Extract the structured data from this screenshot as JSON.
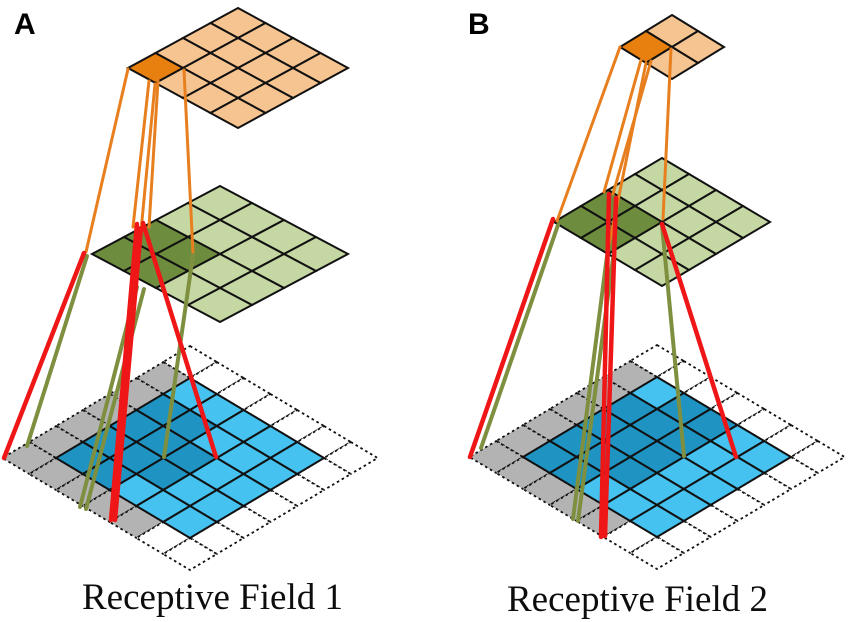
{
  "figure": {
    "background": "#ffffff",
    "colors": {
      "white": "#ffffff",
      "stroke": "#111111",
      "orange_light": "#f6c490",
      "orange_dark": "#e8800f",
      "orange_line": "#e87f1f",
      "green_light": "#c5d8a4",
      "green_dark": "#6e8c3d",
      "olive_line": "#7e9040",
      "blue_light": "#45c2f0",
      "blue_dark": "#1f93c2",
      "gray": "#b3b3b3",
      "red_line": "#ee1616"
    },
    "panels": [
      {
        "id": "A",
        "label": "A",
        "caption": "Receptive Field 1",
        "layers": [
          {
            "name": "output-layer-a",
            "rows": 4,
            "cols": 4,
            "top_vertex": [
              238,
              8
            ],
            "half_w": 27.5,
            "half_h": 15,
            "border": "solid",
            "base_fill": "orange_light",
            "highlight_fill": "orange_dark",
            "highlight_cells": [
              [
                3,
                0
              ]
            ]
          },
          {
            "name": "middle-layer-a",
            "rows": 4,
            "cols": 4,
            "top_vertex": [
              220,
              186
            ],
            "half_w": 32,
            "half_h": 17,
            "border": "solid",
            "base_fill": "green_light",
            "highlight_fill": "green_dark",
            "highlight_cells": [
              [
                2,
                0
              ],
              [
                2,
                1
              ],
              [
                3,
                0
              ],
              [
                3,
                1
              ]
            ]
          },
          {
            "name": "input-layer-a",
            "rows": 7,
            "cols": 7,
            "top_vertex": [
              190,
              346
            ],
            "half_w": 26.8,
            "half_h": 16,
            "border": "dotted",
            "base_fill": "white",
            "cell_fills": {
              "gray": [
                [
                  1,
                  0
                ],
                [
                  2,
                  0
                ],
                [
                  3,
                  0
                ],
                [
                  4,
                  0
                ],
                [
                  5,
                  0
                ],
                [
                  6,
                  0
                ],
                [
                  6,
                  1
                ],
                [
                  6,
                  2
                ],
                [
                  6,
                  3
                ],
                [
                  6,
                  4
                ]
              ],
              "blue_light": [
                [
                  1,
                  1
                ],
                [
                  1,
                  2
                ],
                [
                  1,
                  3
                ],
                [
                  1,
                  4
                ],
                [
                  1,
                  5
                ],
                [
                  2,
                  3
                ],
                [
                  2,
                  4
                ],
                [
                  2,
                  5
                ],
                [
                  3,
                  4
                ],
                [
                  3,
                  5
                ],
                [
                  4,
                  4
                ],
                [
                  4,
                  5
                ],
                [
                  5,
                  3
                ],
                [
                  5,
                  4
                ],
                [
                  5,
                  5
                ]
              ],
              "blue_dark": [
                [
                  2,
                  1
                ],
                [
                  2,
                  2
                ],
                [
                  3,
                  1
                ],
                [
                  3,
                  2
                ],
                [
                  3,
                  3
                ],
                [
                  4,
                  1
                ],
                [
                  4,
                  2
                ],
                [
                  4,
                  3
                ],
                [
                  5,
                  1
                ],
                [
                  5,
                  2
                ]
              ]
            }
          }
        ],
        "connections": [
          {
            "color": "orange_line",
            "width": 3,
            "from": [
              128,
              69
            ],
            "to": [
              86,
              252
            ]
          },
          {
            "color": "orange_line",
            "width": 3,
            "from": [
              149,
              81
            ],
            "to": [
              133,
              227
            ]
          },
          {
            "color": "orange_line",
            "width": 3,
            "from": [
              155,
              84
            ],
            "to": [
              141,
              231
            ]
          },
          {
            "color": "orange_line",
            "width": 3,
            "from": [
              158,
              81
            ],
            "to": [
              149,
              227
            ]
          },
          {
            "color": "orange_line",
            "width": 3,
            "from": [
              184,
              70
            ],
            "to": [
              193,
              253
            ]
          },
          {
            "color": "olive_line",
            "width": 4,
            "from": [
              87,
              256
            ],
            "to": [
              27,
              446
            ]
          },
          {
            "color": "olive_line",
            "width": 4,
            "from": [
              137,
              287
            ],
            "to": [
              80,
              507
            ]
          },
          {
            "color": "olive_line",
            "width": 4,
            "from": [
              144,
              289
            ],
            "to": [
              86,
              509
            ]
          },
          {
            "color": "olive_line",
            "width": 4,
            "from": [
              193,
              255
            ],
            "to": [
              164,
              457
            ]
          },
          {
            "color": "red_line",
            "width": 4.5,
            "from": [
              84,
              253
            ],
            "to": [
              4,
              458
            ]
          },
          {
            "color": "red_line",
            "width": 4.5,
            "from": [
              137,
              224
            ],
            "to": [
              111,
              520
            ]
          },
          {
            "color": "red_line",
            "width": 4.5,
            "from": [
              141,
              228
            ],
            "to": [
              115,
              520
            ]
          },
          {
            "color": "red_line",
            "width": 4.5,
            "from": [
              143,
              223
            ],
            "to": [
              216,
              457
            ]
          }
        ]
      },
      {
        "id": "B",
        "label": "B",
        "caption": "Receptive Field 2",
        "layers": [
          {
            "name": "output-layer-b",
            "rows": 2,
            "cols": 2,
            "top_vertex": [
              672,
              15
            ],
            "half_w": 26,
            "half_h": 16,
            "border": "solid",
            "base_fill": "orange_light",
            "highlight_fill": "orange_dark",
            "highlight_cells": [
              [
                1,
                0
              ]
            ]
          },
          {
            "name": "middle-layer-b",
            "rows": 4,
            "cols": 4,
            "top_vertex": [
              662,
              158
            ],
            "half_w": 27,
            "half_h": 16,
            "border": "solid",
            "base_fill": "green_light",
            "highlight_fill": "green_dark",
            "highlight_cells": [
              [
                2,
                0
              ],
              [
                2,
                1
              ],
              [
                3,
                0
              ],
              [
                3,
                1
              ]
            ]
          },
          {
            "name": "input-layer-b",
            "rows": 7,
            "cols": 7,
            "top_vertex": [
              657,
              345
            ],
            "half_w": 26.8,
            "half_h": 16,
            "border": "dotted",
            "base_fill": "white",
            "cell_fills": {
              "gray": [
                [
                  1,
                  0
                ],
                [
                  2,
                  0
                ],
                [
                  3,
                  0
                ],
                [
                  4,
                  0
                ],
                [
                  5,
                  0
                ],
                [
                  6,
                  0
                ],
                [
                  6,
                  1
                ],
                [
                  6,
                  2
                ],
                [
                  6,
                  3
                ],
                [
                  6,
                  4
                ]
              ],
              "blue_light": [
                [
                  1,
                  1
                ],
                [
                  1,
                  4
                ],
                [
                  1,
                  5
                ],
                [
                  2,
                  4
                ],
                [
                  2,
                  5
                ],
                [
                  3,
                  4
                ],
                [
                  3,
                  5
                ],
                [
                  4,
                  4
                ],
                [
                  4,
                  5
                ],
                [
                  5,
                  3
                ],
                [
                  5,
                  4
                ],
                [
                  5,
                  5
                ]
              ],
              "blue_dark": [
                [
                  1,
                  2
                ],
                [
                  1,
                  3
                ],
                [
                  2,
                  1
                ],
                [
                  2,
                  2
                ],
                [
                  2,
                  3
                ],
                [
                  3,
                  1
                ],
                [
                  3,
                  2
                ],
                [
                  3,
                  3
                ],
                [
                  4,
                  1
                ],
                [
                  4,
                  2
                ],
                [
                  4,
                  3
                ],
                [
                  5,
                  1
                ],
                [
                  5,
                  2
                ]
              ]
            }
          }
        ],
        "connections": [
          {
            "color": "orange_line",
            "width": 3,
            "from": [
              620,
              47
            ],
            "to": [
              557,
              221
            ]
          },
          {
            "color": "orange_line",
            "width": 3,
            "from": [
              641,
              60
            ],
            "to": [
              604,
              192
            ]
          },
          {
            "color": "orange_line",
            "width": 3,
            "from": [
              646,
              63
            ],
            "to": [
              608,
              250
            ]
          },
          {
            "color": "orange_line",
            "width": 3,
            "from": [
              651,
              61
            ],
            "to": [
              613,
              194
            ]
          },
          {
            "color": "orange_line",
            "width": 3,
            "from": [
              671,
              49
            ],
            "to": [
              663,
              219
            ]
          },
          {
            "color": "olive_line",
            "width": 4,
            "from": [
              558,
              225
            ],
            "to": [
              481,
              448
            ]
          },
          {
            "color": "olive_line",
            "width": 4,
            "from": [
              607,
              256
            ],
            "to": [
              573,
              519
            ]
          },
          {
            "color": "olive_line",
            "width": 4,
            "from": [
              613,
              258
            ],
            "to": [
              578,
              521
            ]
          },
          {
            "color": "olive_line",
            "width": 4,
            "from": [
              662,
              225
            ],
            "to": [
              684,
              456
            ]
          },
          {
            "color": "red_line",
            "width": 4.5,
            "from": [
              553,
              219
            ],
            "to": [
              470,
              457
            ]
          },
          {
            "color": "red_line",
            "width": 4.5,
            "from": [
              609,
              194
            ],
            "to": [
              601,
              537
            ]
          },
          {
            "color": "red_line",
            "width": 4.5,
            "from": [
              616,
              198
            ],
            "to": [
              605,
              536
            ]
          },
          {
            "color": "red_line",
            "width": 4.5,
            "from": [
              662,
              224
            ],
            "to": [
              736,
              457
            ]
          }
        ]
      }
    ]
  }
}
